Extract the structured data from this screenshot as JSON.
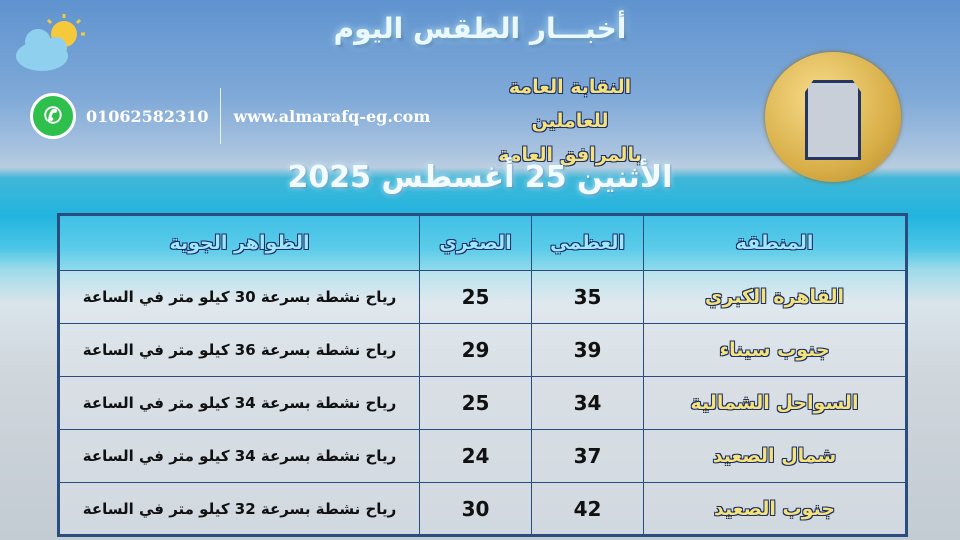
{
  "header": {
    "title": "أخبـــار الطقس اليوم",
    "org_line1": "النقابة العامة للعاملين",
    "org_line2": "بالمرافق العامة",
    "date": "الأثنين 25 أغسطس 2025"
  },
  "contact": {
    "phone": "01062582310",
    "website": "www.almarafq-eg.com",
    "icon": "whatsapp-icon"
  },
  "icons": {
    "weather": "cloud-sun-icon",
    "logo": "union-logo"
  },
  "colors": {
    "region_text": "#f6e27a",
    "header_text": "#9fe7ff",
    "border": "#2b4c7e"
  },
  "table": {
    "headers": [
      "المنطقة",
      "العظمي",
      "الصغري",
      "الظواهر الجوية"
    ],
    "rows": [
      {
        "region": "القاهرة الكبري",
        "max": "35",
        "min": "25",
        "desc": "رياح نشطة بسرعة 30 كيلو متر في الساعة"
      },
      {
        "region": "جنوب سيناء",
        "max": "39",
        "min": "29",
        "desc": "رياح نشطة بسرعة 36 كيلو متر في الساعة"
      },
      {
        "region": "السواحل الشمالية",
        "max": "34",
        "min": "25",
        "desc": "رياح نشطة بسرعة 34 كيلو متر في الساعة"
      },
      {
        "region": "شمال الصعيد",
        "max": "37",
        "min": "24",
        "desc": "رياح نشطة بسرعة 34 كيلو متر في الساعة"
      },
      {
        "region": "جنوب الصعيد",
        "max": "42",
        "min": "30",
        "desc": "رياح نشطة بسرعة 32 كيلو متر في الساعة"
      }
    ]
  }
}
